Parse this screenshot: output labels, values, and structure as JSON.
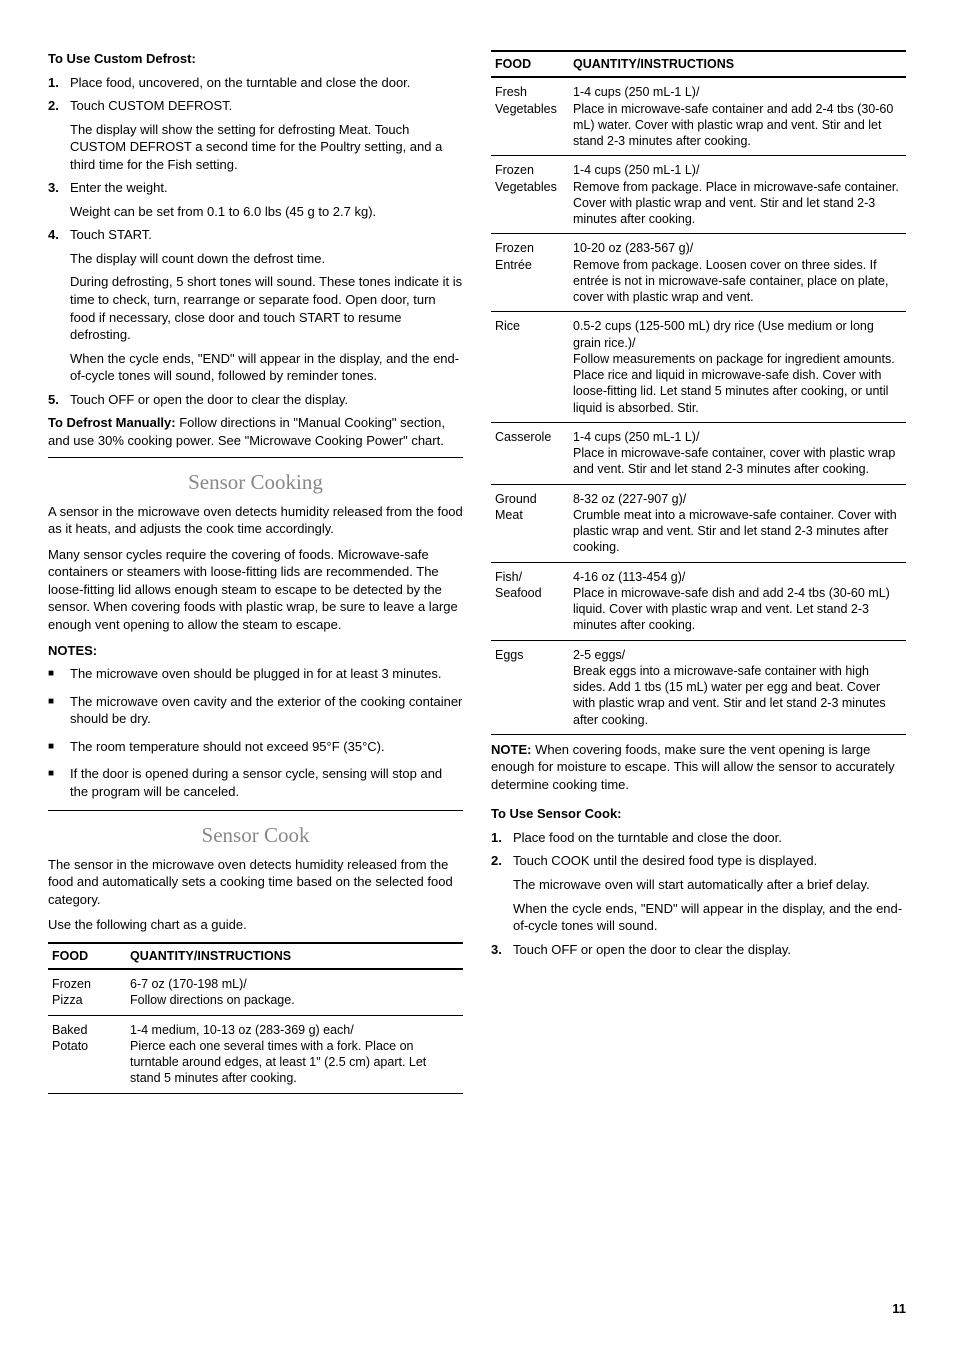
{
  "left": {
    "custom_defrost_heading": "To Use Custom Defrost:",
    "steps": [
      {
        "lead": "Place food, uncovered, on the turntable and close the door.",
        "paras": []
      },
      {
        "lead": "Touch CUSTOM DEFROST.",
        "paras": [
          "The display will show the setting for defrosting Meat. Touch CUSTOM DEFROST a second time for the Poultry setting, and a third time for the Fish setting."
        ]
      },
      {
        "lead": "Enter the weight.",
        "paras": [
          "Weight can be set from 0.1 to 6.0 lbs (45 g to 2.7 kg)."
        ]
      },
      {
        "lead": "Touch START.",
        "paras": [
          "The display will count down the defrost time.",
          "During defrosting, 5 short tones will sound. These tones indicate it is time to check, turn, rearrange or separate food. Open door, turn food if necessary, close door and touch START to resume defrosting.",
          "When the cycle ends, \"END\" will appear in the display, and the end-of-cycle tones will sound, followed by reminder tones."
        ]
      },
      {
        "lead": "Touch OFF or open the door to clear the display.",
        "paras": []
      }
    ],
    "defrost_manually_label": "To Defrost Manually: ",
    "defrost_manually_text": "Follow directions in \"Manual Cooking\" section, and use 30% cooking power. See \"Microwave Cooking Power\" chart.",
    "sensor_cooking_title": "Sensor Cooking",
    "sensor_cooking_p1": "A sensor in the microwave oven detects humidity released from the food as it heats, and adjusts the cook time accordingly.",
    "sensor_cooking_p2": "Many sensor cycles require the covering of foods. Microwave-safe containers or steamers with loose-fitting lids are recommended. The loose-fitting lid allows enough steam to escape to be detected by the sensor. When covering foods with plastic wrap, be sure to leave a large enough vent opening to allow the steam to escape.",
    "notes_heading": "NOTES:",
    "notes": [
      "The microwave oven should be plugged in for at least 3 minutes.",
      "The microwave oven cavity and the exterior of the cooking container should be dry.",
      "The room temperature should not exceed 95°F (35°C).",
      "If the door is opened during a sensor cycle, sensing will stop and the program will be canceled."
    ],
    "sensor_cook_title": "Sensor Cook",
    "sensor_cook_p1": "The sensor in the microwave oven detects humidity released from the food and automatically sets a cooking time based on the selected food category.",
    "sensor_cook_p2": "Use the following chart as a guide.",
    "table_h1": "FOOD",
    "table_h2": "QUANTITY/INSTRUCTIONS",
    "table_rows": [
      {
        "food": "Frozen Pizza",
        "instr": "6-7 oz (170-198 mL)/\nFollow directions on package."
      },
      {
        "food": "Baked Potato",
        "instr": "1-4 medium, 10-13 oz (283-369 g) each/\nPierce each one several times with a fork. Place on turntable around edges, at least 1\" (2.5 cm) apart. Let stand 5 minutes after cooking."
      }
    ]
  },
  "right": {
    "table_h1": "FOOD",
    "table_h2": "QUANTITY/INSTRUCTIONS",
    "table_rows": [
      {
        "food": "Fresh Vegetables",
        "instr": "1-4 cups (250 mL-1 L)/\nPlace in microwave-safe container and add 2-4 tbs (30-60 mL) water. Cover with plastic wrap and vent. Stir and let stand 2-3 minutes after cooking."
      },
      {
        "food": "Frozen Vegetables",
        "instr": "1-4 cups (250 mL-1 L)/\nRemove from package. Place in microwave-safe container. Cover with plastic wrap and vent. Stir and let stand 2-3 minutes after cooking."
      },
      {
        "food": "Frozen Entrée",
        "instr": "10-20 oz (283-567 g)/\nRemove from package. Loosen cover on three sides. If entrée is not in microwave-safe container, place on plate, cover with plastic wrap and vent."
      },
      {
        "food": "Rice",
        "instr": "0.5-2 cups (125-500 mL) dry rice (Use medium or long grain rice.)/\nFollow measurements on package for ingredient amounts. Place rice and liquid in microwave-safe dish. Cover with loose-fitting lid. Let stand 5 minutes after cooking, or until liquid is absorbed. Stir."
      },
      {
        "food": "Casserole",
        "instr": "1-4 cups (250 mL-1 L)/\nPlace in microwave-safe container, cover with plastic wrap and vent. Stir and let stand 2-3 minutes after cooking."
      },
      {
        "food": "Ground Meat",
        "instr": "8-32 oz (227-907 g)/\nCrumble meat into a microwave-safe container. Cover with plastic wrap and vent. Stir and let stand 2-3 minutes after cooking."
      },
      {
        "food": "Fish/ Seafood",
        "instr": "4-16 oz (113-454 g)/\nPlace in microwave-safe dish and add 2-4 tbs (30-60 mL) liquid. Cover with plastic wrap and vent. Let stand 2-3 minutes after cooking."
      },
      {
        "food": "Eggs",
        "instr": "2-5 eggs/\nBreak eggs into a microwave-safe container with high sides. Add 1 tbs (15 mL) water per egg and beat. Cover with plastic wrap and vent. Stir and let stand 2-3 minutes after cooking."
      }
    ],
    "note_label": "NOTE: ",
    "note_text": "When covering foods, make sure the vent opening is large enough for moisture to escape. This will allow the sensor to accurately determine cooking time.",
    "use_sensor_heading": "To Use Sensor Cook:",
    "steps": [
      {
        "lead": "Place food on the turntable and close the door.",
        "paras": []
      },
      {
        "lead": "Touch COOK until the desired food type is displayed.",
        "paras": [
          "The microwave oven will start automatically after a brief delay.",
          "When the cycle ends, \"END\" will appear in the display, and the end-of-cycle tones will sound."
        ]
      },
      {
        "lead": "Touch OFF or open the door to clear the display.",
        "paras": []
      }
    ]
  },
  "page_number": "11"
}
